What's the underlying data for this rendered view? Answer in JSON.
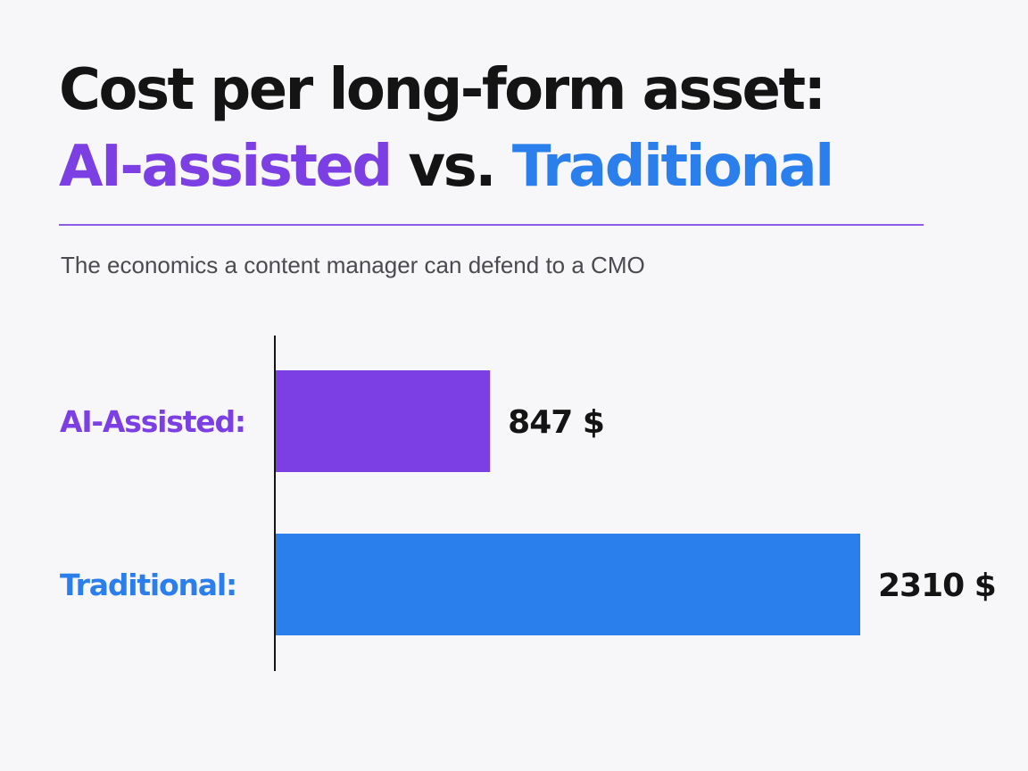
{
  "title": {
    "line1": "Cost per long-form asset:",
    "line2_a": "AI-assisted",
    "line2_b": " vs. ",
    "line2_c": "Traditional"
  },
  "subtitle": "The economics a content manager can defend to a CMO",
  "colors": {
    "ai": "#7b3fe4",
    "traditional": "#2b7fec",
    "text": "#141414",
    "rule": "#8e5ce6"
  },
  "chart_data": {
    "type": "bar",
    "orientation": "horizontal",
    "categories": [
      "AI-Assisted:",
      "Traditional:"
    ],
    "values": [
      847,
      2310
    ],
    "value_labels": [
      "847 $",
      "2310 $"
    ],
    "colors": [
      "#7b3fe4",
      "#2b7fec"
    ],
    "xlim": [
      0,
      2310
    ],
    "grid": false
  }
}
